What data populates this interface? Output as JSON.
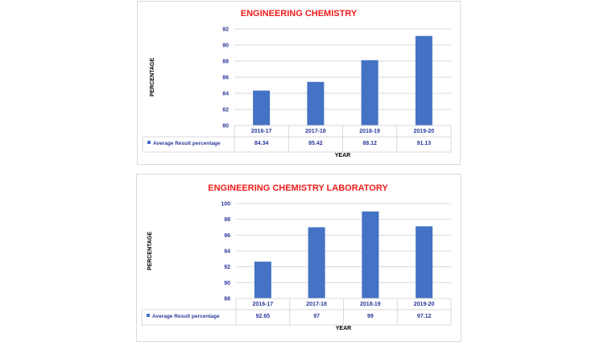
{
  "colors": {
    "title": "#ee1c1c",
    "bar": "#4472c4",
    "grid": "#d9d9d9",
    "text": "#2b3a9a"
  },
  "chart_data": [
    {
      "type": "bar",
      "title": "ENGINEERING CHEMISTRY",
      "xlabel": "YEAR",
      "ylabel": "PERCENTAGE",
      "categories": [
        "2016-17",
        "2017-18",
        "2018-19",
        "2019-20"
      ],
      "ylim": [
        80,
        92
      ],
      "yticks": [
        80,
        82,
        84,
        86,
        88,
        90,
        92
      ],
      "grid": true,
      "legend": "data-table",
      "series": [
        {
          "name": "Average Result percentage",
          "values": [
            84.34,
            85.42,
            88.12,
            91.13
          ],
          "labels": [
            "84.34",
            "85.42",
            "88.12",
            "91.13"
          ]
        }
      ]
    },
    {
      "type": "bar",
      "title": "ENGINEERING CHEMISTRY LABORATORY",
      "xlabel": "YEAR",
      "ylabel": "PERCENTAGE",
      "categories": [
        "2016-17",
        "2017-18",
        "2018-19",
        "2019-20"
      ],
      "ylim": [
        88,
        100
      ],
      "yticks": [
        88,
        90,
        92,
        94,
        96,
        98,
        100
      ],
      "grid": true,
      "legend": "data-table",
      "series": [
        {
          "name": "Average Result percentage",
          "values": [
            92.65,
            97,
            99,
            97.12
          ],
          "labels": [
            "92.65",
            "97",
            "99",
            "97.12"
          ]
        }
      ]
    }
  ]
}
